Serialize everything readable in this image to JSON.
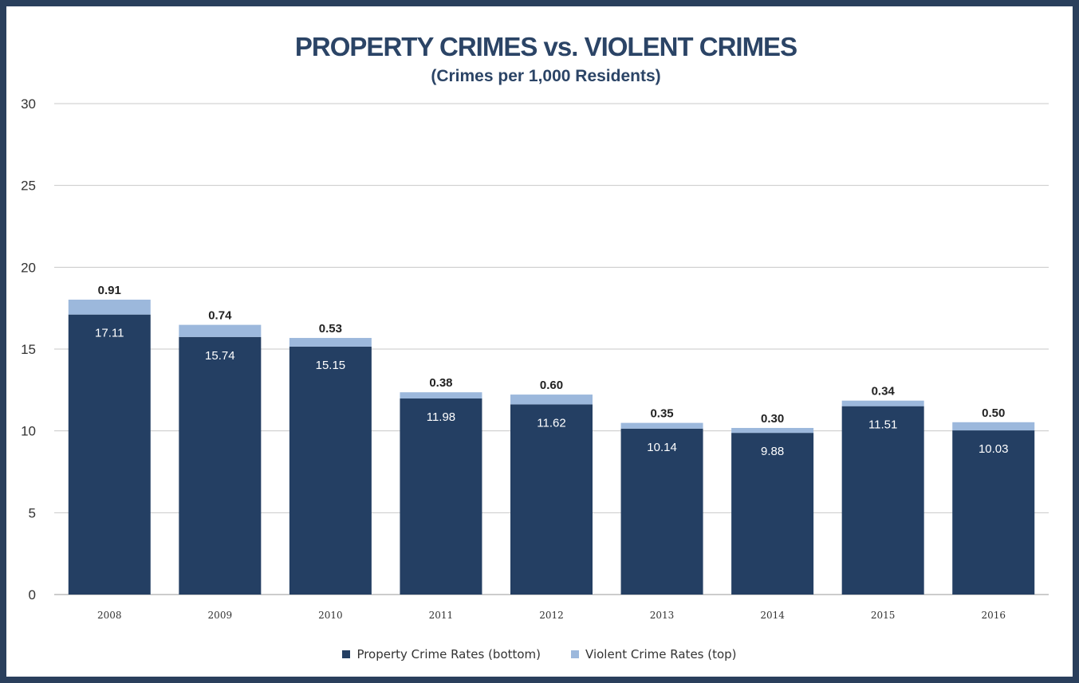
{
  "chart_data": {
    "type": "bar",
    "stacked": true,
    "title": "PROPERTY CRIMES vs. VIOLENT CRIMES",
    "subtitle": "(Crimes per 1,000 Residents)",
    "xlabel": "",
    "ylabel": "",
    "categories": [
      "2008",
      "2009",
      "2010",
      "2011",
      "2012",
      "2013",
      "2014",
      "2015",
      "2016"
    ],
    "series": [
      {
        "name": "Property Crime Rates (bottom)",
        "values": [
          17.11,
          15.74,
          15.15,
          11.98,
          11.62,
          10.14,
          9.88,
          11.51,
          10.03
        ],
        "labels": [
          "17.11",
          "15.74",
          "15.15",
          "11.98",
          "11.62",
          "10.14",
          "9.88",
          "11.51",
          "10.03"
        ],
        "color": "#243f63"
      },
      {
        "name": "Violent Crime Rates (top)",
        "values": [
          0.91,
          0.74,
          0.53,
          0.38,
          0.6,
          0.35,
          0.3,
          0.34,
          0.5
        ],
        "labels": [
          "0.91",
          "0.74",
          "0.53",
          "0.38",
          "0.60",
          "0.35",
          "0.30",
          "0.34",
          "0.50"
        ],
        "color": "#9cb8dc"
      }
    ],
    "ylim": [
      0,
      30
    ],
    "yticks": [
      0,
      5,
      10,
      15,
      20,
      25,
      30
    ],
    "grid": true,
    "legend_position": "bottom"
  }
}
